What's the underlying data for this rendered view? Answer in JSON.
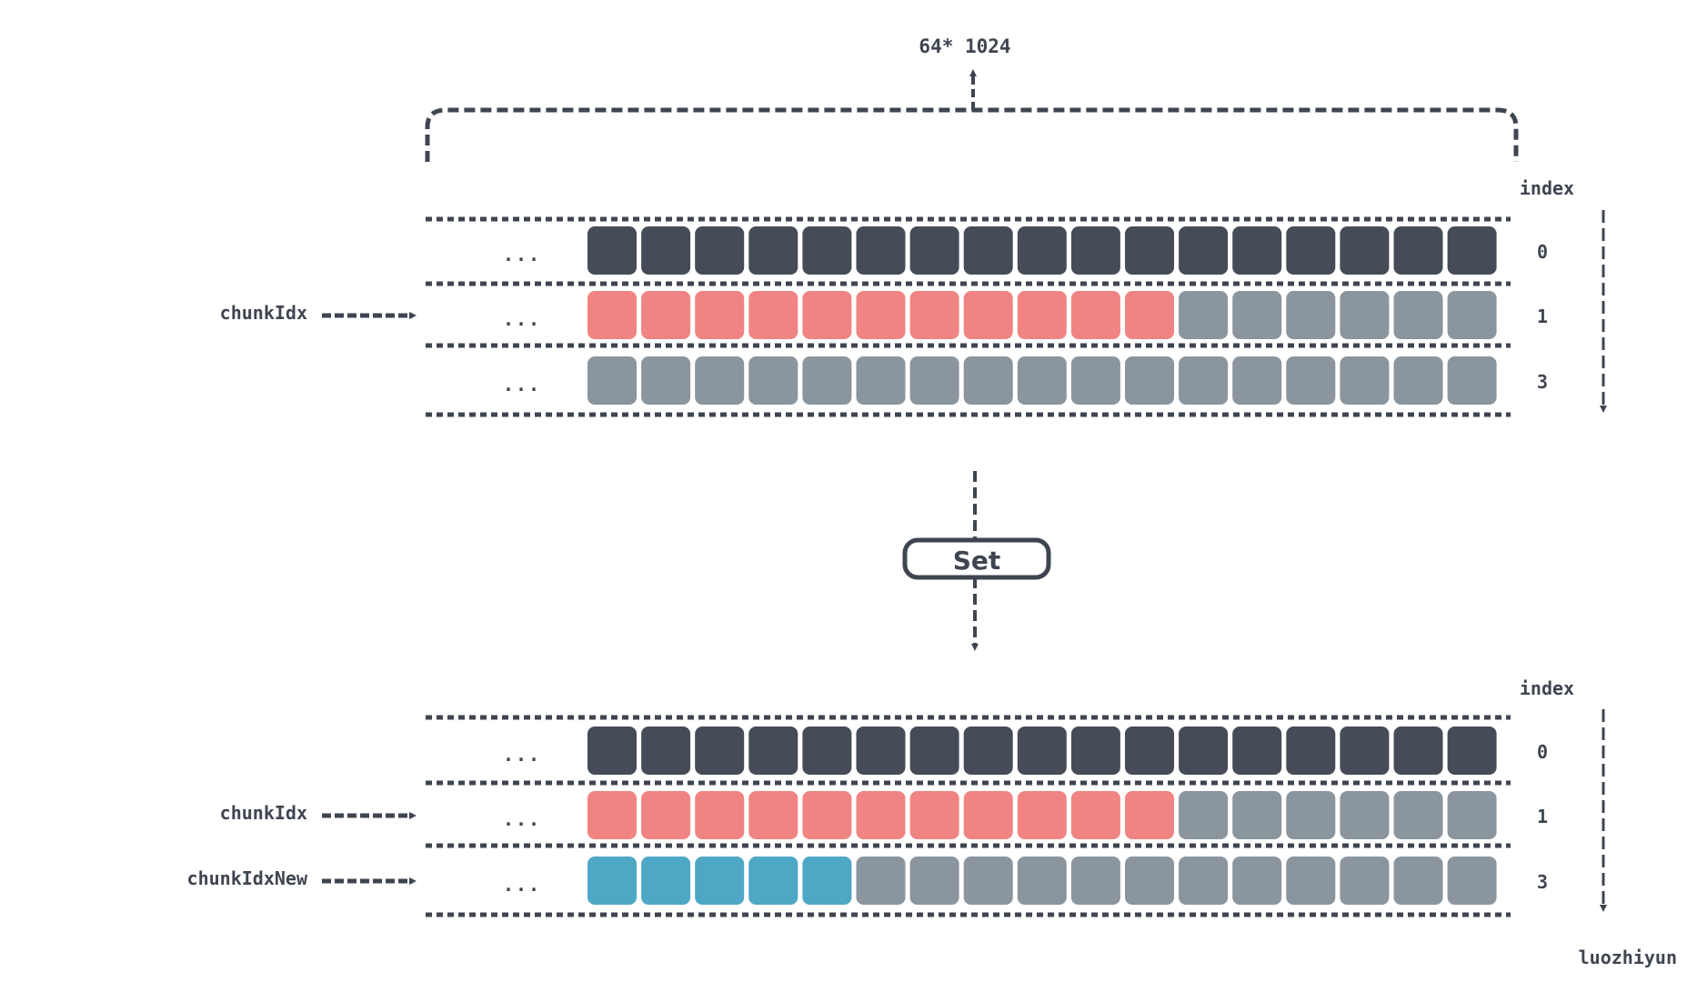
{
  "colors": {
    "ink": "#3f4550",
    "dark": "#454c57",
    "red": "#f08482",
    "grey": "#8a959e",
    "blue": "#4fa7c6"
  },
  "top": {
    "size_label": "64* 1024",
    "index_label": "index",
    "ellipsis": "...",
    "pointers": [
      {
        "label": "chunkIdx",
        "row": 1
      }
    ],
    "rows": [
      {
        "index": "0",
        "segments": [
          {
            "color": "dark",
            "count": 17
          }
        ]
      },
      {
        "index": "1",
        "segments": [
          {
            "color": "red",
            "count": 11
          },
          {
            "color": "grey",
            "count": 6
          }
        ]
      },
      {
        "index": "3",
        "segments": [
          {
            "color": "grey",
            "count": 17
          }
        ]
      }
    ]
  },
  "operation": {
    "label": "Set"
  },
  "bottom": {
    "index_label": "index",
    "ellipsis": "...",
    "pointers": [
      {
        "label": "chunkIdx",
        "row": 1
      },
      {
        "label": "chunkIdxNew",
        "row": 2
      }
    ],
    "rows": [
      {
        "index": "0",
        "segments": [
          {
            "color": "dark",
            "count": 17
          }
        ]
      },
      {
        "index": "1",
        "segments": [
          {
            "color": "red",
            "count": 11
          },
          {
            "color": "grey",
            "count": 6
          }
        ]
      },
      {
        "index": "3",
        "segments": [
          {
            "color": "blue",
            "count": 5
          },
          {
            "color": "grey",
            "count": 12
          }
        ]
      }
    ]
  },
  "watermark": "luozhiyun"
}
